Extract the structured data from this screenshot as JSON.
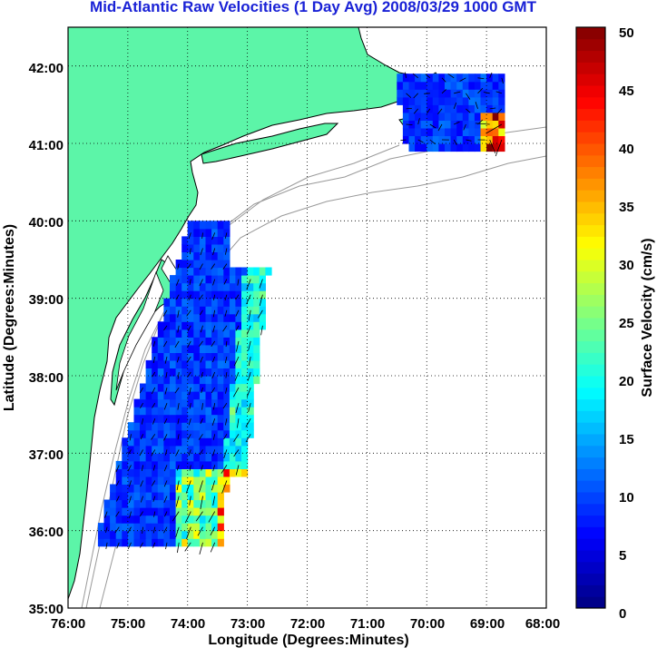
{
  "title": "Mid-Atlantic Raw Velocities (1 Day Avg) 2008/03/29 1000 GMT",
  "xlabel": "Longitude (Degrees:Minutes)",
  "ylabel": "Latitude (Degrees:Minutes)",
  "colorbar_label": "Surface Velocity (cm/s)",
  "x_ticks": [
    "76:00",
    "75:00",
    "74:00",
    "73:00",
    "72:00",
    "71:00",
    "70:00",
    "69:00",
    "68:00"
  ],
  "y_ticks": [
    "35:00",
    "36:00",
    "37:00",
    "38:00",
    "39:00",
    "40:00",
    "41:00",
    "42:00"
  ],
  "colorbar_ticks": [
    "0",
    "5",
    "10",
    "15",
    "20",
    "25",
    "30",
    "35",
    "40",
    "45",
    "50"
  ],
  "colors": {
    "land": "#5cf5a8",
    "coast": "#000000",
    "bathymetry": "#999999",
    "title": "#1a22d6",
    "vectors": "#000000"
  },
  "chart_data": {
    "type": "map",
    "xlim": [
      -76,
      -68
    ],
    "ylim": [
      35,
      42.5
    ],
    "clim": [
      0,
      50
    ],
    "colormap": "jet",
    "grid": true,
    "regions": [
      {
        "name": "",
        "lon_range": [
          -75.6,
          -72.6
        ],
        "lat_range": [
          35.8,
          40.0
        ],
        "typical_speed_cm_s": 9,
        "max_speed_cm_s": 45
      },
      {
        "name": "",
        "lon_range": [
          -70.6,
          -68.8
        ],
        "lat_range": [
          40.9,
          41.9
        ],
        "typical_speed_cm_s": 10,
        "max_speed_cm_s": 50
      }
    ]
  }
}
